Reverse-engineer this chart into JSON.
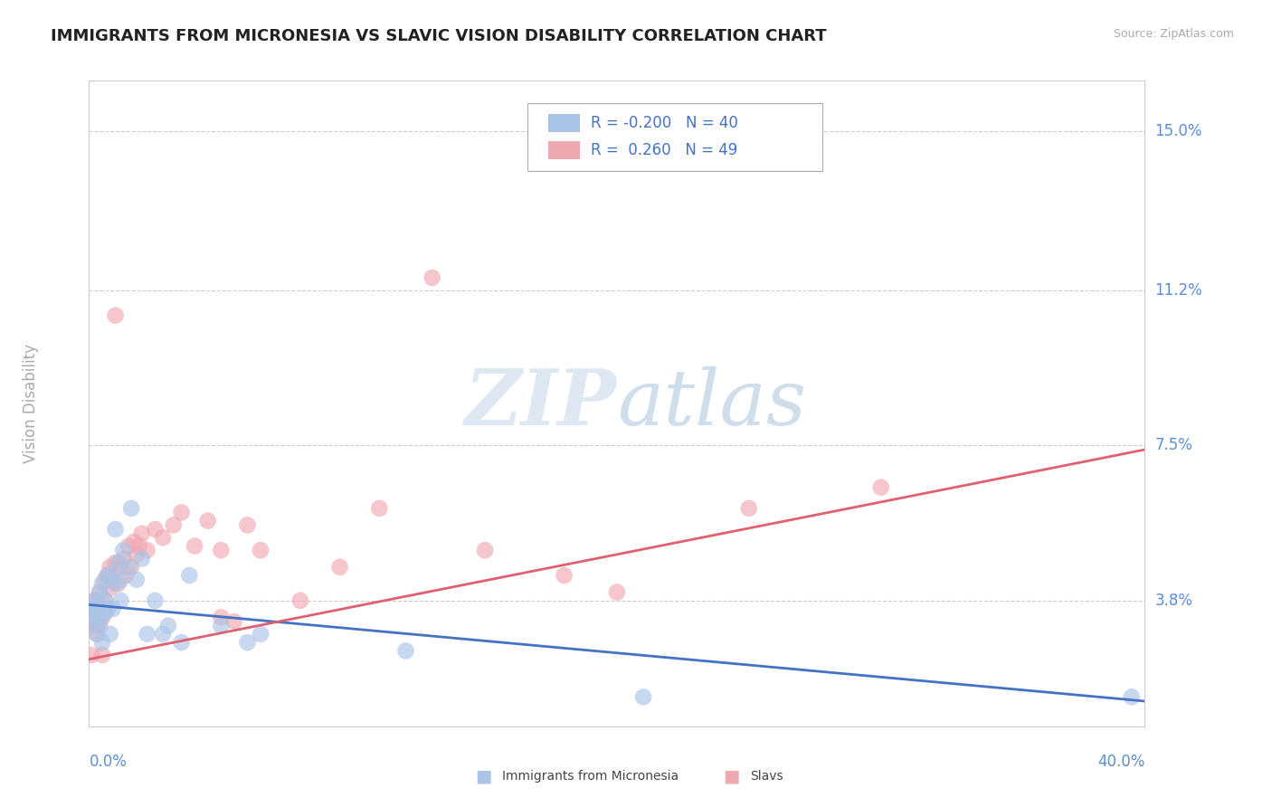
{
  "title": "IMMIGRANTS FROM MICRONESIA VS SLAVIC VISION DISABILITY CORRELATION CHART",
  "source": "Source: ZipAtlas.com",
  "ylabel": "Vision Disability",
  "y_tick_labels": [
    "3.8%",
    "7.5%",
    "11.2%",
    "15.0%"
  ],
  "y_tick_values": [
    0.038,
    0.075,
    0.112,
    0.15
  ],
  "x_min": 0.0,
  "x_max": 0.4,
  "y_min": 0.008,
  "y_max": 0.162,
  "blue_color": "#aac4e8",
  "pink_color": "#f0a8b0",
  "trend_blue_color": "#4472c4",
  "trend_pink_color": "#e06070",
  "grid_color": "#cccccc",
  "axis_label_color": "#5b8fd4",
  "ylabel_color": "#aaaaaa",
  "title_color": "#222222",
  "source_color": "#aaaaaa",
  "legend_label1": "Immigrants from Micronesia",
  "legend_label2": "Slavs",
  "legend_text_color": "#4472c4",
  "blue_trend_start": 0.037,
  "blue_trend_end": 0.014,
  "pink_trend_start": 0.024,
  "pink_trend_end": 0.074,
  "blue_scatter_x": [
    0.001,
    0.001,
    0.002,
    0.002,
    0.003,
    0.003,
    0.003,
    0.004,
    0.004,
    0.005,
    0.005,
    0.006,
    0.006,
    0.007,
    0.007,
    0.008,
    0.008,
    0.009,
    0.01,
    0.01,
    0.011,
    0.012,
    0.012,
    0.013,
    0.015,
    0.016,
    0.018,
    0.02,
    0.022,
    0.025,
    0.028,
    0.03,
    0.035,
    0.038,
    0.05,
    0.06,
    0.065,
    0.12,
    0.21,
    0.395
  ],
  "blue_scatter_y": [
    0.035,
    0.037,
    0.034,
    0.038,
    0.032,
    0.036,
    0.03,
    0.04,
    0.033,
    0.028,
    0.042,
    0.035,
    0.038,
    0.044,
    0.036,
    0.03,
    0.044,
    0.036,
    0.055,
    0.042,
    0.047,
    0.038,
    0.043,
    0.05,
    0.046,
    0.06,
    0.043,
    0.048,
    0.03,
    0.038,
    0.03,
    0.032,
    0.028,
    0.044,
    0.032,
    0.028,
    0.03,
    0.026,
    0.015,
    0.015
  ],
  "pink_scatter_x": [
    0.001,
    0.001,
    0.002,
    0.002,
    0.003,
    0.003,
    0.004,
    0.004,
    0.005,
    0.005,
    0.006,
    0.006,
    0.007,
    0.008,
    0.008,
    0.009,
    0.01,
    0.011,
    0.012,
    0.013,
    0.014,
    0.015,
    0.016,
    0.017,
    0.018,
    0.019,
    0.02,
    0.022,
    0.025,
    0.028,
    0.032,
    0.035,
    0.04,
    0.045,
    0.05,
    0.055,
    0.06,
    0.065,
    0.08,
    0.095,
    0.11,
    0.13,
    0.05,
    0.15,
    0.18,
    0.2,
    0.25,
    0.3,
    0.01
  ],
  "pink_scatter_y": [
    0.025,
    0.032,
    0.033,
    0.038,
    0.03,
    0.037,
    0.032,
    0.04,
    0.034,
    0.025,
    0.043,
    0.038,
    0.044,
    0.046,
    0.041,
    0.043,
    0.047,
    0.042,
    0.046,
    0.048,
    0.044,
    0.051,
    0.046,
    0.052,
    0.049,
    0.051,
    0.054,
    0.05,
    0.055,
    0.053,
    0.056,
    0.059,
    0.051,
    0.057,
    0.05,
    0.033,
    0.056,
    0.05,
    0.038,
    0.046,
    0.06,
    0.115,
    0.034,
    0.05,
    0.044,
    0.04,
    0.06,
    0.065,
    0.106
  ]
}
